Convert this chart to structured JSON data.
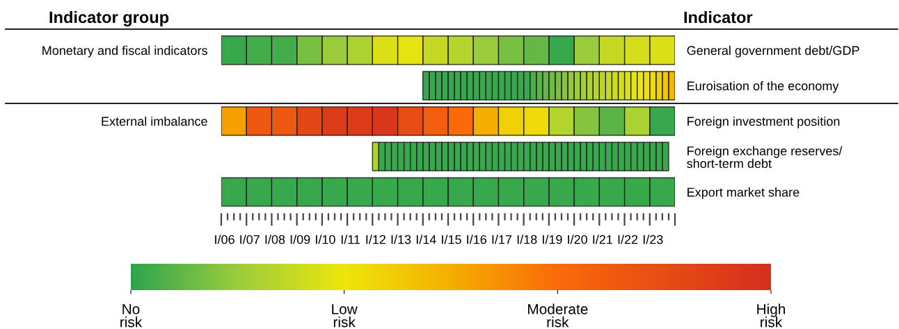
{
  "chart_data": {
    "type": "heatmap",
    "annotations": [
      "Indicator group",
      "Indicator"
    ],
    "categories": [
      "I/06",
      null,
      null,
      null,
      "I/07",
      null,
      null,
      null,
      "I/08",
      null,
      null,
      null,
      "I/09",
      null,
      null,
      null,
      "I/10",
      null,
      null,
      null,
      "I/11",
      null,
      null,
      null,
      "I/12",
      null,
      null,
      null,
      "I/13",
      null,
      null,
      null,
      "I/14",
      null,
      null,
      null,
      "I/15",
      null,
      null,
      null,
      "I/16",
      null,
      null,
      null,
      "I/17",
      null,
      null,
      null,
      "I/18",
      null,
      null,
      null,
      "I/19",
      null,
      null,
      null,
      "I/20",
      null,
      null,
      null,
      "I/21",
      null,
      null,
      null,
      "I/22",
      null,
      null,
      null,
      "I/23",
      null,
      null,
      null
    ],
    "y_categories": [
      "Monetary and fiscal indicators",
      null,
      "External imbalance",
      null,
      null
    ],
    "y2_categories": [
      "General government debt/GDP",
      "Euroisation of the economy",
      "Foreign investment position",
      "Foreign exchange reserves/\nshort-term debt",
      "Export market share"
    ],
    "clim": [
      0,
      3
    ],
    "cticks": [
      {
        "value": 0,
        "label": "No\nrisk"
      },
      {
        "value": 1,
        "label": "Low\nrisk"
      },
      {
        "value": 2,
        "label": "Moderate\nrisk"
      },
      {
        "value": 3,
        "label": "High\nrisk"
      }
    ],
    "cells": [
      [
        0.05,
        0.05,
        0.05,
        0.05,
        0.1,
        0.1,
        0.1,
        0.1,
        0.1,
        0.1,
        0.1,
        0.1,
        0.35,
        0.35,
        0.35,
        0.35,
        0.5,
        0.5,
        0.5,
        0.5,
        0.6,
        0.6,
        0.6,
        0.6,
        0.9,
        0.9,
        0.9,
        0.9,
        0.95,
        0.95,
        0.95,
        0.95,
        0.75,
        0.75,
        0.75,
        0.75,
        0.65,
        0.65,
        0.65,
        0.65,
        0.5,
        0.5,
        0.5,
        0.5,
        0.35,
        0.35,
        0.35,
        0.35,
        0.25,
        0.25,
        0.25,
        0.25,
        0.05,
        0.05,
        0.05,
        0.05,
        0.5,
        0.5,
        0.5,
        0.5,
        0.75,
        0.75,
        0.75,
        0.75,
        0.85,
        0.85,
        0.85,
        0.85,
        0.9,
        0.9,
        0.9,
        0.9
      ],
      [
        null,
        null,
        null,
        null,
        null,
        null,
        null,
        null,
        null,
        null,
        null,
        null,
        null,
        null,
        null,
        null,
        null,
        null,
        null,
        null,
        null,
        null,
        null,
        null,
        null,
        null,
        null,
        null,
        null,
        null,
        null,
        null,
        0.05,
        0.05,
        0.05,
        0.05,
        0.05,
        0.05,
        0.05,
        0.05,
        0.05,
        0.05,
        0.05,
        0.05,
        0.05,
        0.05,
        0.05,
        0.05,
        0.05,
        0.15,
        0.2,
        0.25,
        0.3,
        0.35,
        0.4,
        0.45,
        0.5,
        0.55,
        0.6,
        0.65,
        0.7,
        0.75,
        0.8,
        0.85,
        0.9,
        0.95,
        1.0,
        1.05,
        1.1,
        1.2,
        1.3,
        1.4
      ],
      [
        1.6,
        1.6,
        1.6,
        1.6,
        2.3,
        2.3,
        2.3,
        2.3,
        2.3,
        2.3,
        2.3,
        2.3,
        2.6,
        2.6,
        2.6,
        2.6,
        2.8,
        2.8,
        2.8,
        2.8,
        2.8,
        2.8,
        2.8,
        2.8,
        2.85,
        2.85,
        2.85,
        2.85,
        2.5,
        2.5,
        2.5,
        2.5,
        2.2,
        2.2,
        2.2,
        2.2,
        2.0,
        2.0,
        2.0,
        2.0,
        1.5,
        1.5,
        1.5,
        1.5,
        1.2,
        1.2,
        1.2,
        1.2,
        1.1,
        1.1,
        1.1,
        1.1,
        0.65,
        0.65,
        0.65,
        0.65,
        0.4,
        0.4,
        0.4,
        0.4,
        0.2,
        0.2,
        0.2,
        0.2,
        0.6,
        0.6,
        0.6,
        0.6,
        0.05,
        0.05,
        0.05,
        0.05
      ],
      [
        null,
        null,
        null,
        null,
        null,
        null,
        null,
        null,
        null,
        null,
        null,
        null,
        null,
        null,
        null,
        null,
        null,
        null,
        null,
        null,
        null,
        null,
        null,
        null,
        0.6,
        0.05,
        0.05,
        0.05,
        0.05,
        0.05,
        0.05,
        0.05,
        0.05,
        0.05,
        0.05,
        0.05,
        0.05,
        0.05,
        0.05,
        0.05,
        0.05,
        0.05,
        0.05,
        0.05,
        0.05,
        0.05,
        0.05,
        0.05,
        0.05,
        0.05,
        0.05,
        0.05,
        0.05,
        0.05,
        0.05,
        0.05,
        0.05,
        0.05,
        0.05,
        0.05,
        0.05,
        0.05,
        0.05,
        0.05,
        0.05,
        0.05,
        0.05,
        0.05,
        0.05,
        0.05,
        0.05,
        null
      ],
      [
        0.05,
        0.05,
        0.05,
        0.05,
        0.05,
        0.05,
        0.05,
        0.05,
        0.05,
        0.05,
        0.05,
        0.05,
        0.05,
        0.05,
        0.05,
        0.05,
        0.05,
        0.05,
        0.05,
        0.05,
        0.05,
        0.05,
        0.05,
        0.05,
        0.05,
        0.05,
        0.05,
        0.05,
        0.05,
        0.05,
        0.05,
        0.05,
        0.05,
        0.05,
        0.05,
        0.05,
        0.05,
        0.05,
        0.05,
        0.05,
        0.05,
        0.05,
        0.05,
        0.05,
        0.05,
        0.05,
        0.05,
        0.05,
        0.05,
        0.05,
        0.05,
        0.05,
        0.05,
        0.05,
        0.05,
        0.05,
        0.05,
        0.05,
        0.05,
        0.05,
        0.05,
        0.05,
        0.05,
        0.05,
        0.05,
        0.05,
        0.05,
        0.05,
        0.05,
        0.05,
        0.05,
        0.05
      ]
    ]
  }
}
